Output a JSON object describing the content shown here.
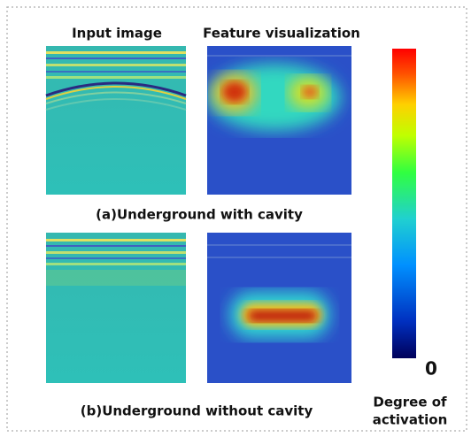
{
  "header": {
    "input_label": "Input image",
    "feature_label": "Feature visualization"
  },
  "rows": [
    {
      "caption": "(a)Underground with cavity"
    },
    {
      "caption": "(b)Underground without cavity"
    }
  ],
  "colorbar": {
    "min_label": "0",
    "title_line1": "Degree of",
    "title_line2": "activation"
  }
}
